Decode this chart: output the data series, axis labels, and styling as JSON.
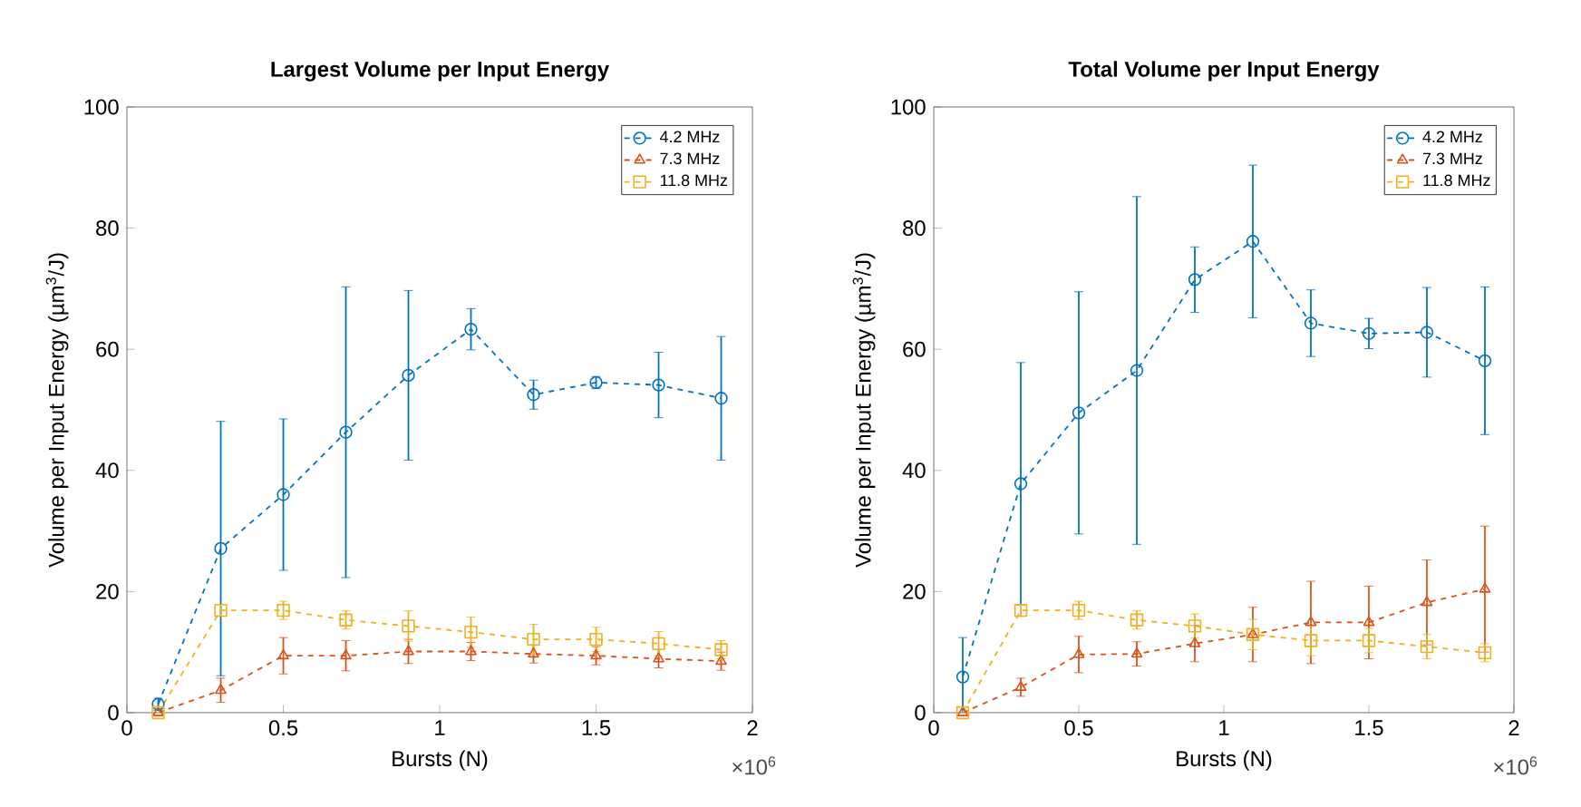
{
  "chart_data": [
    {
      "type": "line",
      "title": "Largest Volume per Input Energy",
      "xlabel": "Bursts (N)",
      "ylabel": "Volume per Input Energy (µm$^{3}$/J)",
      "annotations": [
        "×10$^{6}$"
      ],
      "x": [
        0.1,
        0.3,
        0.5,
        0.7,
        0.9,
        1.1,
        1.3,
        1.5,
        1.7,
        1.9
      ],
      "xlim": [
        0,
        2
      ],
      "xticks": [
        0,
        0.5,
        1,
        1.5,
        2
      ],
      "ylim": [
        0,
        100
      ],
      "yticks": [
        0,
        20,
        40,
        60,
        80,
        100
      ],
      "legend": "top right",
      "line_style": "dashed",
      "series": [
        {
          "name": "4.2 MHz",
          "color": "#0072bd",
          "marker": "circle",
          "values": [
            1.4,
            27.1,
            36,
            46.3,
            55.7,
            63.3,
            52.5,
            54.5,
            54.1,
            51.9
          ],
          "errors": [
            1,
            21,
            12.5,
            24,
            14,
            3.4,
            2.4,
            1,
            5.4,
            10.2
          ]
        },
        {
          "name": "7.3 MHz",
          "color": "#d95319",
          "marker": "triangle",
          "values": [
            0,
            3.7,
            9.4,
            9.4,
            10.1,
            10.1,
            9.7,
            9.4,
            8.9,
            8.5
          ],
          "errors": [
            null,
            2,
            3,
            2.5,
            2,
            1.5,
            1.5,
            1.5,
            1.5,
            1.5
          ]
        },
        {
          "name": "11.8 MHz",
          "color": "#edb120",
          "marker": "square",
          "values": [
            0,
            16.9,
            16.9,
            15.3,
            14.3,
            13.3,
            12.1,
            12.1,
            11.4,
            10.4
          ],
          "errors": [
            null,
            1,
            1.5,
            1.5,
            2.5,
            2.5,
            2.5,
            2,
            2,
            1.5
          ]
        }
      ]
    },
    {
      "type": "line",
      "title": "Total Volume per Input Energy",
      "xlabel": "Bursts (N)",
      "ylabel": "Volume per Input Energy (µm$^{3}$/J)",
      "annotations": [
        "×10$^{6}$"
      ],
      "x": [
        0.1,
        0.3,
        0.5,
        0.7,
        0.9,
        1.1,
        1.3,
        1.5,
        1.7,
        1.9
      ],
      "xlim": [
        0,
        2
      ],
      "xticks": [
        0,
        0.5,
        1,
        1.5,
        2
      ],
      "ylim": [
        0,
        100
      ],
      "yticks": [
        0,
        20,
        40,
        60,
        80,
        100
      ],
      "legend": "top right",
      "line_style": "dashed",
      "series": [
        {
          "name": "4.2 MHz",
          "color": "#0072bd",
          "marker": "circle",
          "values": [
            5.9,
            37.8,
            49.5,
            56.5,
            71.5,
            77.8,
            64.3,
            62.6,
            62.8,
            58.1
          ],
          "errors": [
            6.5,
            20,
            20,
            28.7,
            5.4,
            12.6,
            5.5,
            2.5,
            7.4,
            12.2
          ]
        },
        {
          "name": "7.3 MHz",
          "color": "#d95319",
          "marker": "triangle",
          "values": [
            0,
            4.2,
            9.6,
            9.7,
            11.4,
            12.9,
            14.9,
            14.9,
            18.2,
            20.4
          ],
          "errors": [
            null,
            1.5,
            3,
            2,
            3,
            4.5,
            6.8,
            6,
            7,
            10.4
          ]
        },
        {
          "name": "11.8 MHz",
          "color": "#edb120",
          "marker": "square",
          "values": [
            0,
            16.9,
            16.9,
            15.3,
            14.3,
            12.9,
            11.9,
            11.9,
            10.9,
            9.9
          ],
          "errors": [
            null,
            1,
            1.5,
            1.5,
            2,
            2.5,
            2.5,
            2,
            2,
            1.5
          ]
        }
      ]
    }
  ]
}
